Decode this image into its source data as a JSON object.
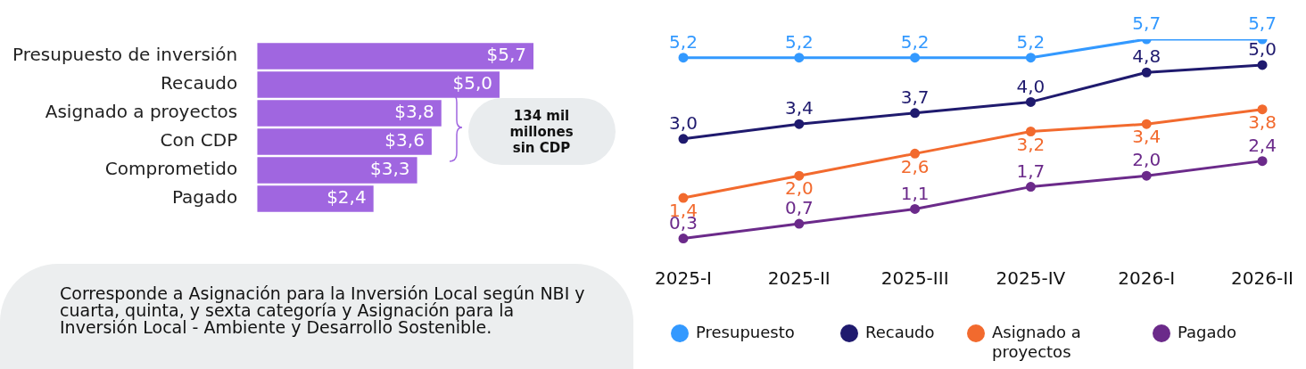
{
  "chart_data": [
    {
      "type": "bar",
      "orientation": "horizontal",
      "categories": [
        "Presupuesto de inversión",
        "Recaudo",
        "Asignado a proyectos",
        "Con CDP",
        "Comprometido",
        "Pagado"
      ],
      "values": [
        5.7,
        5.0,
        3.8,
        3.6,
        3.3,
        2.4
      ],
      "color": "#a066e0",
      "value_labels": [
        "$5,7",
        "$5,0",
        "$3,8",
        "$3,6",
        "$3,3",
        "$2,4"
      ],
      "annotations": [
        "134 mil millones sin CDP",
        "Corresponde a Asignación para la Inversión Local según NBI y cuarta, quinta, y sexta categoría y Asignación para la Inversión Local -  Ambiente y Desarrollo Sostenible."
      ]
    },
    {
      "type": "line",
      "categories": [
        "2025-I",
        "2025-II",
        "2025-III",
        "2025-IV",
        "2026-I",
        "2026-II"
      ],
      "data_labels": true,
      "marker": "circle",
      "legend": "bottom",
      "series": [
        {
          "name": "Presupuesto",
          "color": "#3399ff",
          "values": [
            5.2,
            5.2,
            5.2,
            5.2,
            5.7,
            5.7
          ],
          "value_labels": [
            "5,2",
            "5,2",
            "5,2",
            "5,2",
            "5,7",
            "5,7"
          ]
        },
        {
          "name": "Recaudo",
          "color": "#1f1a6e",
          "values": [
            3.0,
            3.4,
            3.7,
            4.0,
            4.8,
            5.0
          ],
          "value_labels": [
            "3,0",
            "3,4",
            "3,7",
            "4,0",
            "4,8",
            "5,0"
          ]
        },
        {
          "name": "Asignado a proyectos",
          "color": "#f26a2e",
          "values": [
            1.4,
            2.0,
            2.6,
            3.2,
            3.4,
            3.8
          ],
          "value_labels": [
            "1,4",
            "2,0",
            "2,6",
            "3,2",
            "3,4",
            "3,8"
          ]
        },
        {
          "name": "Pagado",
          "color": "#6b2a8a",
          "values": [
            0.3,
            0.7,
            1.1,
            1.7,
            2.0,
            2.4
          ],
          "value_labels": [
            "0,3",
            "0,7",
            "1,1",
            "1,7",
            "2,0",
            "2,4"
          ]
        }
      ]
    }
  ]
}
